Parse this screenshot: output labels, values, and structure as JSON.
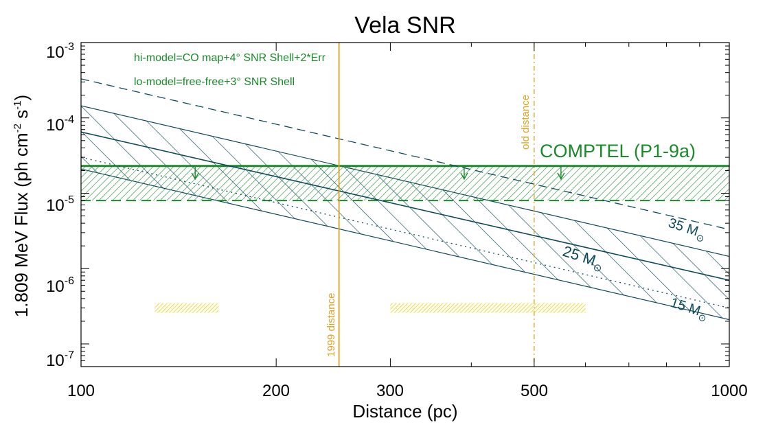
{
  "chart_data": {
    "type": "line",
    "title": "Vela SNR",
    "xlabel": "Distance (pc)",
    "ylabel_parts": [
      "1.809 MeV Flux (ph cm",
      "-2",
      " s",
      "-1",
      ")"
    ],
    "xscale": "log",
    "yscale": "log",
    "xlim": [
      100,
      1000
    ],
    "ylim": [
      5e-08,
      0.001
    ],
    "x_ticks": [
      {
        "value": 100,
        "label": "100"
      },
      {
        "value": 200,
        "label": "200"
      },
      {
        "value": 300,
        "label": "300"
      },
      {
        "value": 500,
        "label": "500"
      },
      {
        "value": 1000,
        "label": "1000"
      }
    ],
    "y_ticks": [
      {
        "value": 0.001,
        "base": "10",
        "exp": "-3"
      },
      {
        "value": 0.0001,
        "base": "10",
        "exp": "-4"
      },
      {
        "value": 1e-05,
        "base": "10",
        "exp": "-5"
      },
      {
        "value": 1e-06,
        "base": "10",
        "exp": "-6"
      },
      {
        "value": 1e-07,
        "base": "10",
        "exp": "-7"
      }
    ],
    "model_notes": [
      "hi-model=CO map+4° SNR Shell+2*Err",
      "lo-model=free-free+3° SNR Shell"
    ],
    "models": [
      {
        "name": "35 M",
        "label_base": "35 M",
        "label_sub": "⊙",
        "style": "dashed",
        "x": [
          100,
          1000
        ],
        "y": [
          0.00033,
          3.3e-06
        ]
      },
      {
        "name": "25 M",
        "label_base": "25 M",
        "label_sub": "⊙",
        "style": "solid",
        "x": [
          100,
          1000
        ],
        "y": [
          6.5e-05,
          7e-07
        ],
        "band": [
          0.000145,
          2.1e-07
        ],
        "band_upper": [
          0.000145,
          1.45e-06
        ]
      },
      {
        "name": "15 M",
        "label_base": "15 M",
        "label_sub": "⊙",
        "style": "dotted",
        "x": [
          100,
          1000
        ],
        "y": [
          3e-05,
          3e-07
        ]
      }
    ],
    "band_25": {
      "upper": [
        0.000145,
        1.45e-06
      ],
      "lower": [
        2.1e-05,
        2.1e-07
      ]
    },
    "comptel": {
      "label": "COMPTEL (P1-9a)",
      "upper": 2.3e-05,
      "lower": 8e-06,
      "color": "#1a8a2a",
      "arrows_x": [
        150,
        390,
        550
      ]
    },
    "distance_markers": [
      {
        "x": 250,
        "label": "1999 distance",
        "style": "solid",
        "color": "#e0a020"
      },
      {
        "x": 500,
        "label": "old distance",
        "style": "dash-dot",
        "color": "#e0a020"
      }
    ],
    "distance_ranges": [
      {
        "x0": 130,
        "x1": 163,
        "y": 3e-07,
        "color": "#e8d400"
      },
      {
        "x0": 300,
        "x1": 600,
        "y": 3e-07,
        "color": "#e8d400"
      }
    ],
    "colors": {
      "model": "#0d4a5a",
      "comptel": "#1a8a2a",
      "note": "#1a8a2a",
      "marker": "#e0a020",
      "range": "#e8d400"
    }
  }
}
